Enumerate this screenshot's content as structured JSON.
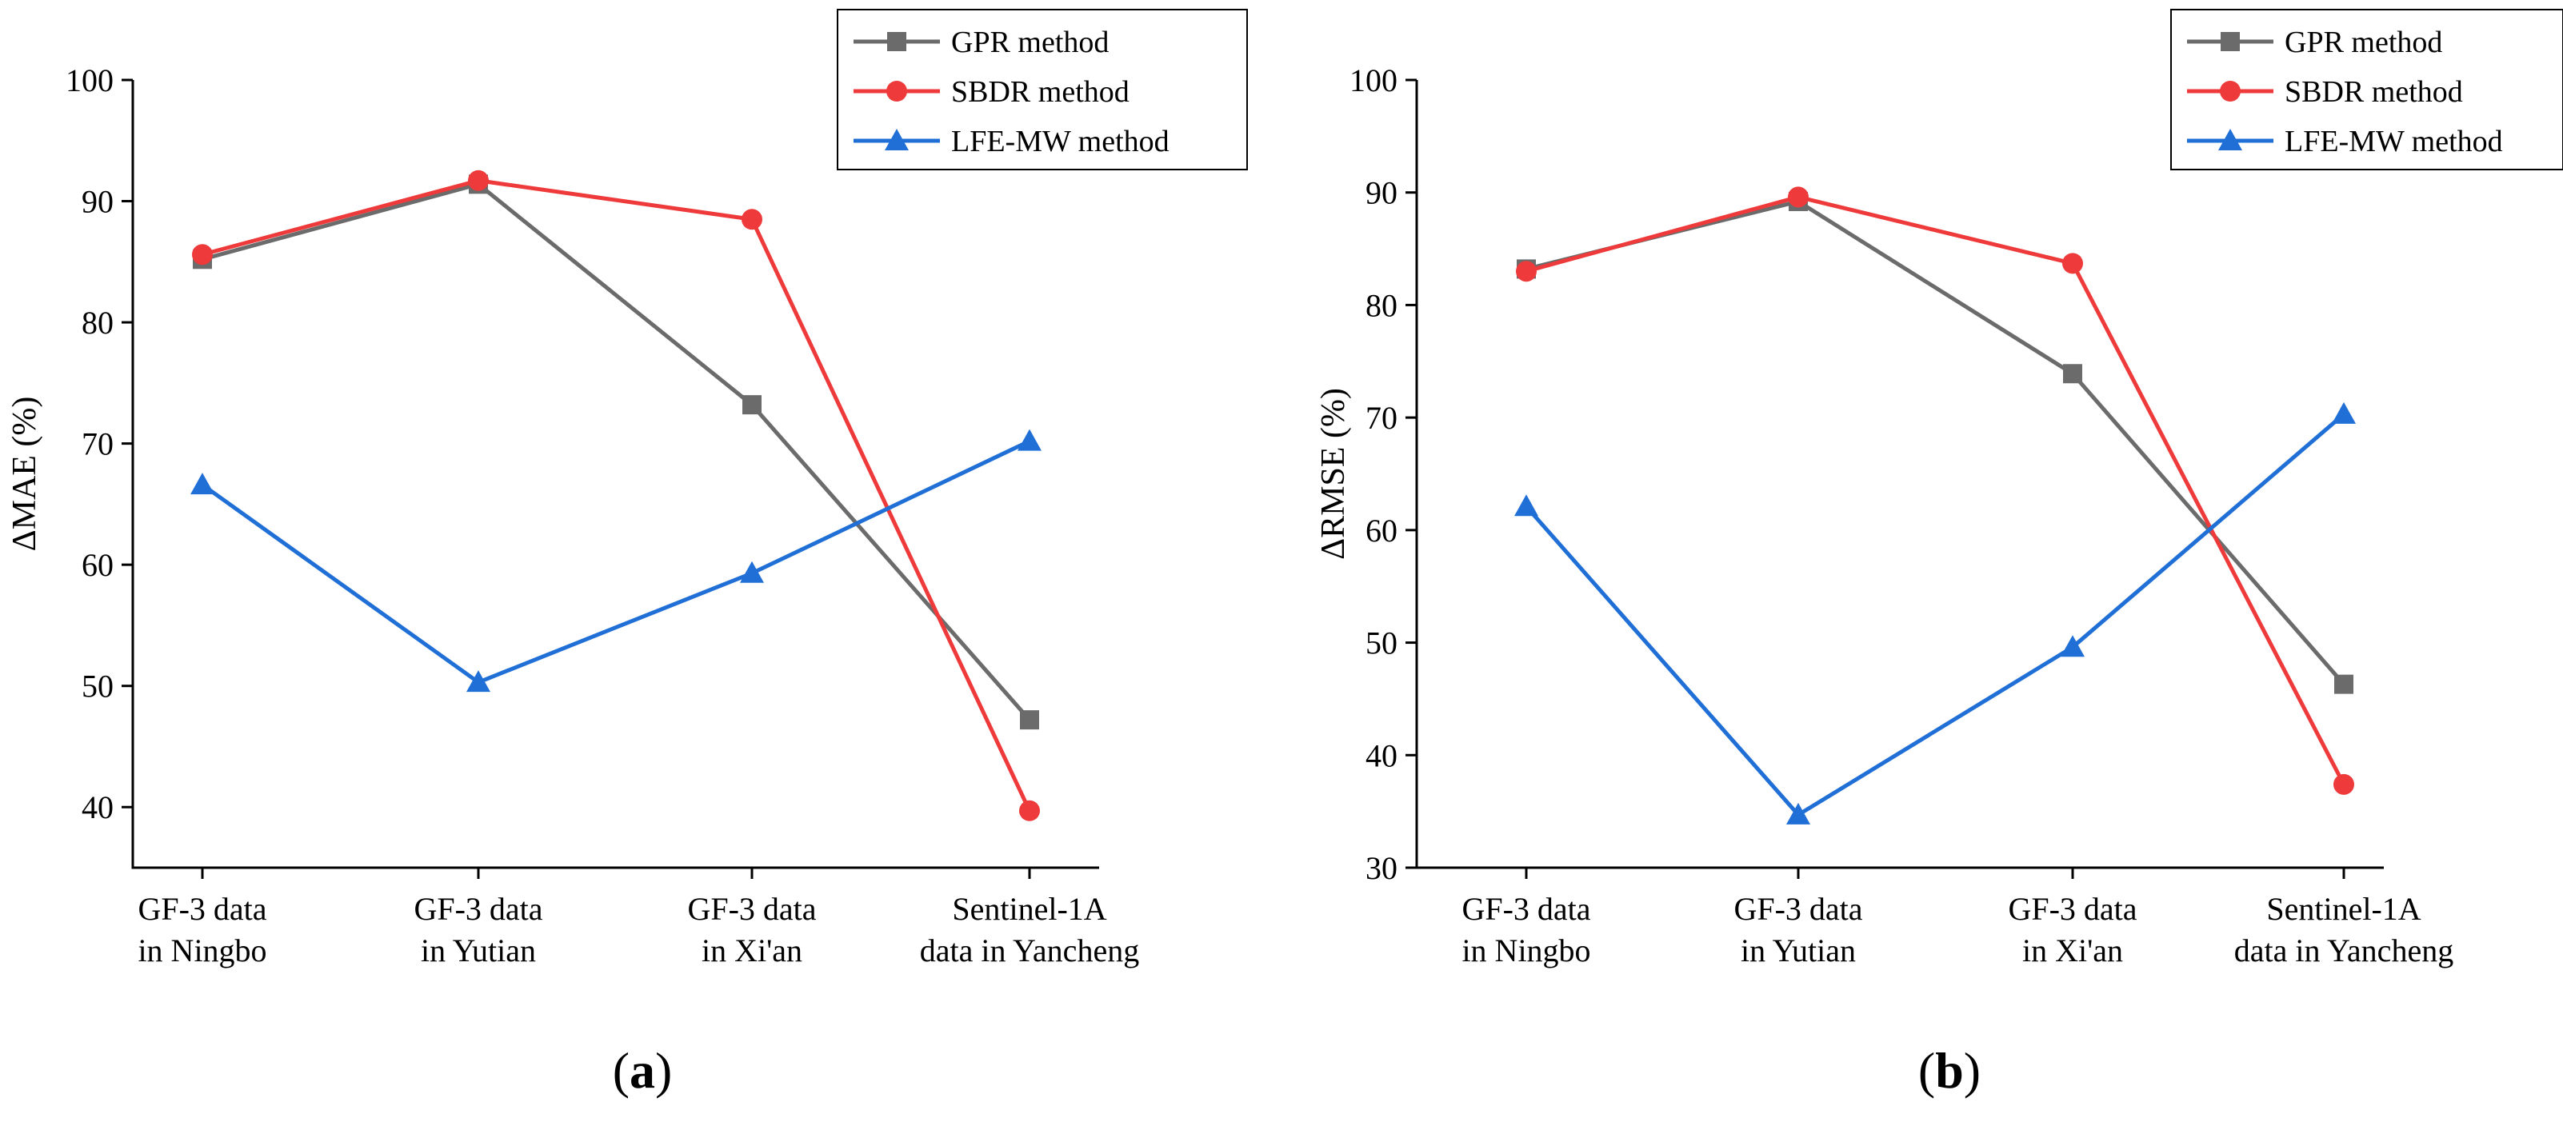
{
  "figure": {
    "panels": [
      "(a)",
      "(b)"
    ]
  },
  "colors": {
    "gpr": "#6b6b6b",
    "sbdr": "#ee3a3a",
    "lfe": "#1f6fd6"
  },
  "chart_data": [
    {
      "type": "line",
      "panel_label_open": "(",
      "panel_label_letter": "a",
      "panel_label_close": ")",
      "ylabel": "ΔMAE (%)",
      "xlabel": "",
      "categories": [
        [
          "GF-3 data",
          "in Ningbo"
        ],
        [
          "GF-3 data",
          "in Yutian"
        ],
        [
          "GF-3 data",
          "in Xi'an"
        ],
        [
          "Sentinel-1A",
          "data in Yancheng"
        ]
      ],
      "ylim": [
        35,
        100
      ],
      "yticks": [
        40,
        50,
        60,
        70,
        80,
        90,
        100
      ],
      "legend_position": "top-right",
      "series": [
        {
          "name": "GPR method",
          "key": "gpr",
          "marker": "square",
          "values": [
            85.2,
            91.4,
            73.2,
            47.2
          ]
        },
        {
          "name": "SBDR method",
          "key": "sbdr",
          "marker": "circle",
          "values": [
            85.6,
            91.7,
            88.5,
            39.7
          ]
        },
        {
          "name": "LFE-MW method",
          "key": "lfe",
          "marker": "triangle",
          "values": [
            66.6,
            50.3,
            59.3,
            70.2
          ]
        }
      ]
    },
    {
      "type": "line",
      "panel_label_open": "(",
      "panel_label_letter": "b",
      "panel_label_close": ")",
      "ylabel": "ΔRMSE (%)",
      "xlabel": "",
      "categories": [
        [
          "GF-3 data",
          "in Ningbo"
        ],
        [
          "GF-3 data",
          "in Yutian"
        ],
        [
          "GF-3 data",
          "in Xi'an"
        ],
        [
          "Sentinel-1A",
          "data in Yancheng"
        ]
      ],
      "ylim": [
        30,
        100
      ],
      "yticks": [
        30,
        40,
        50,
        60,
        70,
        80,
        90,
        100
      ],
      "legend_position": "top-right",
      "series": [
        {
          "name": "GPR method",
          "key": "gpr",
          "marker": "square",
          "values": [
            83.2,
            89.2,
            73.9,
            46.3
          ]
        },
        {
          "name": "SBDR method",
          "key": "sbdr",
          "marker": "circle",
          "values": [
            83.0,
            89.6,
            83.7,
            37.4
          ]
        },
        {
          "name": "LFE-MW method",
          "key": "lfe",
          "marker": "triangle",
          "values": [
            62.1,
            34.7,
            49.6,
            70.3
          ]
        }
      ]
    }
  ]
}
